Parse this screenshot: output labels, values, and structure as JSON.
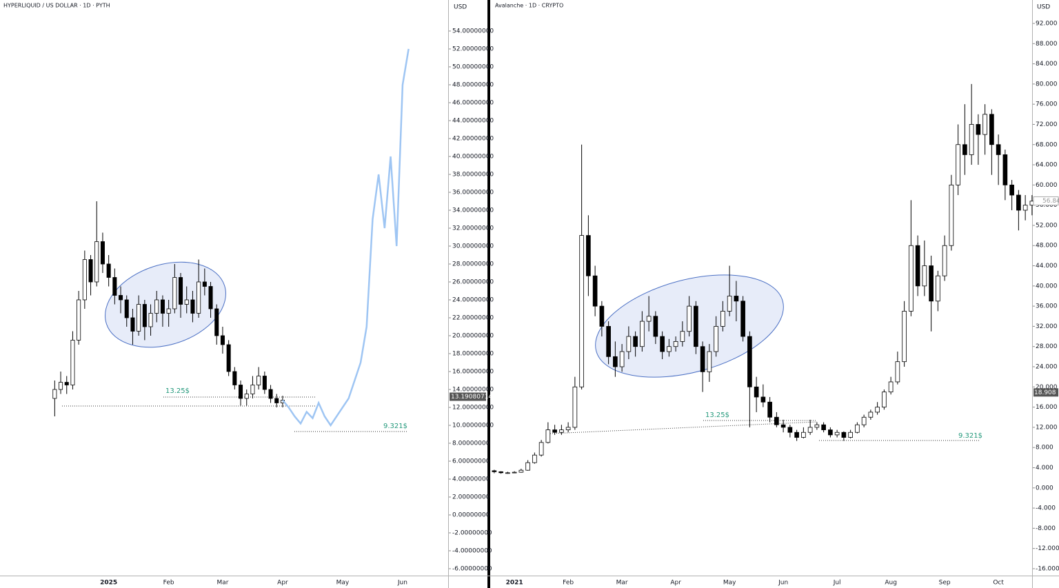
{
  "chart_data": [
    {
      "type": "candlestick",
      "title": "HYPERLIQUID / US DOLLAR · 1D · PYTH",
      "axis_unit": "USD",
      "categories": [
        null,
        null,
        null,
        null,
        null,
        null,
        null,
        null,
        null,
        "2025",
        null,
        null,
        null,
        null,
        null,
        null,
        null,
        null,
        null,
        "Feb",
        null,
        null,
        null,
        null,
        null,
        null,
        null,
        null,
        "Mar",
        null,
        null,
        null,
        null,
        null,
        null,
        null,
        null,
        null,
        "Apr",
        null,
        null,
        null,
        null,
        null,
        null,
        null,
        null,
        null,
        "May",
        null,
        null,
        null,
        null,
        null,
        null,
        null,
        null,
        null,
        "Jun",
        null
      ],
      "ohlc": [
        [
          13.0,
          15.0,
          11.0,
          14.0
        ],
        [
          14.0,
          16.0,
          13.5,
          14.8
        ],
        [
          14.8,
          15.5,
          13.5,
          14.5
        ],
        [
          14.5,
          20.5,
          14.0,
          19.5
        ],
        [
          19.5,
          25.0,
          19.0,
          24.0
        ],
        [
          24.0,
          29.5,
          23.0,
          28.5
        ],
        [
          28.5,
          29.0,
          24.5,
          26.0
        ],
        [
          26.0,
          35.0,
          25.5,
          30.5
        ],
        [
          30.5,
          31.5,
          27.0,
          28.0
        ],
        [
          28.0,
          29.0,
          25.5,
          26.5
        ],
        [
          26.5,
          27.5,
          23.5,
          24.5
        ],
        [
          24.5,
          25.5,
          22.5,
          24.0
        ],
        [
          24.0,
          24.5,
          21.0,
          22.0
        ],
        [
          22.0,
          23.0,
          19.0,
          20.5
        ],
        [
          20.5,
          24.5,
          20.0,
          23.5
        ],
        [
          23.5,
          24.0,
          19.5,
          21.0
        ],
        [
          21.0,
          23.5,
          20.0,
          22.5
        ],
        [
          22.5,
          25.0,
          21.5,
          24.0
        ],
        [
          24.0,
          24.5,
          21.0,
          22.5
        ],
        [
          22.5,
          24.0,
          21.0,
          23.0
        ],
        [
          23.0,
          28.0,
          22.5,
          26.5
        ],
        [
          26.5,
          27.0,
          22.0,
          23.5
        ],
        [
          23.5,
          25.5,
          22.5,
          24.0
        ],
        [
          24.0,
          25.0,
          21.5,
          22.5
        ],
        [
          22.5,
          28.5,
          22.0,
          26.0
        ],
        [
          26.0,
          27.5,
          24.5,
          25.5
        ],
        [
          25.5,
          26.0,
          22.0,
          23.0
        ],
        [
          23.0,
          23.5,
          19.0,
          20.0
        ],
        [
          20.0,
          21.0,
          18.0,
          19.0
        ],
        [
          19.0,
          19.5,
          15.5,
          16.0
        ],
        [
          16.0,
          16.5,
          14.0,
          14.5
        ],
        [
          14.5,
          15.0,
          12.2,
          13.0
        ],
        [
          13.0,
          14.0,
          12.2,
          13.5
        ],
        [
          13.5,
          15.5,
          13.0,
          14.5
        ],
        [
          14.5,
          16.5,
          14.0,
          15.5
        ],
        [
          15.5,
          16.0,
          13.5,
          14.0
        ],
        [
          14.0,
          14.5,
          12.5,
          13.0
        ],
        [
          13.0,
          13.5,
          12.0,
          12.5
        ],
        [
          12.5,
          13.3,
          12.0,
          12.8
        ],
        null,
        null,
        null,
        null,
        null,
        null,
        null,
        null,
        null,
        null,
        null,
        null,
        null,
        null,
        null,
        null,
        null,
        null,
        null,
        null,
        null,
        null
      ],
      "overlay": {
        "color": "#9ec5f3",
        "values": [
          null,
          null,
          null,
          null,
          null,
          null,
          null,
          null,
          null,
          null,
          null,
          null,
          null,
          null,
          null,
          null,
          null,
          null,
          null,
          null,
          null,
          null,
          null,
          null,
          null,
          null,
          null,
          null,
          null,
          null,
          null,
          null,
          null,
          null,
          null,
          null,
          null,
          null,
          12.8,
          12.0,
          11.0,
          10.2,
          11.5,
          10.8,
          12.5,
          11.0,
          10.0,
          11.0,
          12.0,
          13.0,
          15.0,
          17.0,
          21.0,
          33.0,
          38.0,
          32.0,
          40.0,
          30.0,
          48.0,
          52.0
        ]
      },
      "up_color": "#ffffff",
      "down_color": "#000000",
      "ylim": [
        -6.77,
        57.46
      ],
      "yticks": [
        {
          "value": -6,
          "label": "-6.00000000"
        },
        {
          "value": -4,
          "label": "-4.00000000"
        },
        {
          "value": -2,
          "label": "-2.00000000"
        },
        {
          "value": 0,
          "label": "0.00000000"
        },
        {
          "value": 2,
          "label": "2.00000000"
        },
        {
          "value": 4,
          "label": "4.00000000"
        },
        {
          "value": 6,
          "label": "6.00000000"
        },
        {
          "value": 8,
          "label": "8.00000000"
        },
        {
          "value": 10,
          "label": "10.00000000"
        },
        {
          "value": 12,
          "label": "12.00000000"
        },
        {
          "value": 14,
          "label": "14.00000000"
        },
        {
          "value": 16,
          "label": "16.00000000"
        },
        {
          "value": 18,
          "label": "18.00000000"
        },
        {
          "value": 20,
          "label": "20.00000000"
        },
        {
          "value": 22,
          "label": "22.00000000"
        },
        {
          "value": 24,
          "label": "24.00000000"
        },
        {
          "value": 26,
          "label": "26.00000000"
        },
        {
          "value": 28,
          "label": "28.00000000"
        },
        {
          "value": 30,
          "label": "30.00000000"
        },
        {
          "value": 32,
          "label": "32.00000000"
        },
        {
          "value": 34,
          "label": "34.00000000"
        },
        {
          "value": 36,
          "label": "36.00000000"
        },
        {
          "value": 38,
          "label": "38.00000000"
        },
        {
          "value": 40,
          "label": "40.00000000"
        },
        {
          "value": 42,
          "label": "42.00000000"
        },
        {
          "value": 44,
          "label": "44.00000000"
        },
        {
          "value": 46,
          "label": "46.00000000"
        },
        {
          "value": 48,
          "label": "48.00000000"
        },
        {
          "value": 50,
          "label": "50.00000000"
        },
        {
          "value": 52,
          "label": "52.00000000"
        },
        {
          "value": 54,
          "label": "54.00000000"
        }
      ],
      "last_price": 13.19080714,
      "annotations": [
        "13.25$",
        "9.321$"
      ],
      "annotation_color": "#22987a",
      "grid": false
    },
    {
      "type": "candlestick",
      "title": "Avalanche · 1D · CRYPTO",
      "axis_unit": "USD",
      "categories": [
        null,
        null,
        null,
        "2021",
        null,
        null,
        null,
        null,
        null,
        null,
        null,
        "Feb",
        null,
        null,
        null,
        null,
        null,
        null,
        null,
        "Mar",
        null,
        null,
        null,
        null,
        null,
        null,
        null,
        "Apr",
        null,
        null,
        null,
        null,
        null,
        null,
        null,
        "May",
        null,
        null,
        null,
        null,
        null,
        null,
        null,
        "Jun",
        null,
        null,
        null,
        null,
        null,
        null,
        null,
        "Jul",
        null,
        null,
        null,
        null,
        null,
        null,
        null,
        "Aug",
        null,
        null,
        null,
        null,
        null,
        null,
        null,
        "Sep",
        null,
        null,
        null,
        null,
        null,
        null,
        null,
        "Oct",
        null,
        null,
        null,
        null,
        null
      ],
      "ohlc": [
        [
          3.4,
          3.6,
          2.9,
          3.2
        ],
        [
          3.2,
          3.3,
          2.8,
          3.0
        ],
        [
          3.0,
          3.2,
          2.8,
          3.0
        ],
        [
          3.0,
          3.3,
          2.9,
          3.1
        ],
        [
          3.1,
          3.8,
          3.0,
          3.5
        ],
        [
          3.5,
          5.5,
          3.4,
          5.0
        ],
        [
          5.0,
          7.0,
          4.8,
          6.5
        ],
        [
          6.5,
          9.5,
          6.2,
          9.0
        ],
        [
          9.0,
          13.0,
          8.8,
          11.5
        ],
        [
          11.5,
          12.5,
          10.5,
          11.0
        ],
        [
          11.0,
          12.5,
          10.5,
          11.5
        ],
        [
          11.5,
          13.0,
          11.0,
          12.0
        ],
        [
          12.0,
          22.0,
          11.5,
          20.0
        ],
        [
          20.0,
          68.0,
          19.5,
          50.0
        ],
        [
          50.0,
          54.0,
          38.0,
          42.0
        ],
        [
          42.0,
          44.0,
          34.0,
          36.0
        ],
        [
          36.0,
          37.0,
          30.0,
          32.0
        ],
        [
          32.0,
          33.0,
          24.5,
          26.0
        ],
        [
          26.0,
          29.0,
          22.0,
          24.0
        ],
        [
          24.0,
          28.5,
          23.0,
          27.0
        ],
        [
          27.0,
          32.0,
          25.5,
          30.0
        ],
        [
          30.0,
          31.0,
          26.0,
          28.0
        ],
        [
          28.0,
          35.0,
          27.0,
          33.0
        ],
        [
          33.0,
          38.0,
          31.0,
          34.0
        ],
        [
          34.0,
          35.0,
          28.5,
          30.0
        ],
        [
          30.0,
          31.0,
          25.5,
          27.0
        ],
        [
          27.0,
          29.5,
          26.0,
          28.0
        ],
        [
          28.0,
          30.0,
          27.0,
          29.0
        ],
        [
          29.0,
          33.0,
          28.0,
          31.0
        ],
        [
          31.0,
          38.0,
          30.0,
          36.0
        ],
        [
          36.0,
          37.0,
          26.5,
          28.0
        ],
        [
          28.0,
          29.0,
          19.0,
          23.0
        ],
        [
          23.0,
          28.5,
          21.0,
          27.0
        ],
        [
          27.0,
          34.0,
          26.0,
          32.0
        ],
        [
          32.0,
          37.0,
          31.0,
          35.0
        ],
        [
          35.0,
          44.0,
          34.0,
          38.0
        ],
        [
          38.0,
          41.0,
          33.0,
          37.0
        ],
        [
          37.0,
          38.0,
          29.0,
          30.0
        ],
        [
          30.0,
          31.0,
          12.0,
          20.0
        ],
        [
          20.0,
          22.0,
          15.0,
          18.0
        ],
        [
          18.0,
          20.5,
          16.0,
          17.0
        ],
        [
          17.0,
          18.0,
          13.0,
          14.0
        ],
        [
          14.0,
          15.0,
          12.0,
          12.5
        ],
        [
          12.5,
          13.5,
          11.0,
          12.0
        ],
        [
          12.0,
          12.5,
          10.0,
          11.0
        ],
        [
          11.0,
          11.5,
          9.3,
          10.0
        ],
        [
          10.0,
          12.0,
          9.8,
          11.0
        ],
        [
          11.0,
          13.5,
          10.5,
          12.0
        ],
        [
          12.0,
          13.0,
          11.5,
          12.5
        ],
        [
          12.5,
          13.0,
          11.0,
          11.5
        ],
        [
          11.5,
          12.0,
          10.0,
          10.5
        ],
        [
          10.5,
          11.5,
          10.0,
          11.0
        ],
        [
          11.0,
          11.2,
          9.3,
          10.0
        ],
        [
          10.0,
          11.5,
          9.8,
          11.0
        ],
        [
          11.0,
          13.0,
          10.8,
          12.5
        ],
        [
          12.5,
          14.5,
          12.0,
          14.0
        ],
        [
          14.0,
          15.5,
          13.5,
          15.0
        ],
        [
          15.0,
          17.0,
          14.5,
          16.0
        ],
        [
          16.0,
          19.5,
          15.5,
          19.0
        ],
        [
          19.0,
          22.0,
          18.5,
          21.0
        ],
        [
          21.0,
          27.0,
          20.5,
          25.0
        ],
        [
          25.0,
          37.0,
          24.0,
          35.0
        ],
        [
          35.0,
          57.0,
          34.0,
          48.0
        ],
        [
          48.0,
          50.0,
          38.0,
          40.0
        ],
        [
          40.0,
          49.0,
          38.0,
          44.0
        ],
        [
          44.0,
          46.0,
          31.0,
          37.0
        ],
        [
          37.0,
          43.0,
          35.0,
          42.0
        ],
        [
          42.0,
          50.0,
          41.0,
          48.0
        ],
        [
          48.0,
          62.0,
          47.0,
          60.0
        ],
        [
          60.0,
          72.0,
          58.0,
          68.0
        ],
        [
          68.0,
          76.0,
          62.0,
          66.0
        ],
        [
          66.0,
          80.0,
          64.0,
          72.0
        ],
        [
          72.0,
          74.0,
          64.0,
          70.0
        ],
        [
          70.0,
          76.0,
          66.0,
          74.0
        ],
        [
          74.0,
          75.0,
          62.0,
          68.0
        ],
        [
          68.0,
          70.0,
          60.0,
          66.0
        ],
        [
          66.0,
          67.0,
          57.0,
          60.0
        ],
        [
          60.0,
          61.0,
          55.0,
          58.0
        ],
        [
          58.0,
          59.0,
          51.0,
          55.0
        ],
        [
          55.0,
          58.0,
          53.0,
          56.0
        ],
        [
          56.0,
          58.0,
          54.0,
          56.8
        ]
      ],
      "up_color": "#ffffff",
      "down_color": "#000000",
      "ylim": [
        -17.37,
        96.64
      ],
      "yticks": [
        {
          "value": -16,
          "label": "-16.000"
        },
        {
          "value": -12,
          "label": "-12.000"
        },
        {
          "value": -8,
          "label": "-8.000"
        },
        {
          "value": -4,
          "label": "-4.000"
        },
        {
          "value": 0,
          "label": "0.000"
        },
        {
          "value": 4,
          "label": "4.000"
        },
        {
          "value": 8,
          "label": "8.000"
        },
        {
          "value": 12,
          "label": "12.000"
        },
        {
          "value": 16,
          "label": "16.000"
        },
        {
          "value": 20,
          "label": "20.000"
        },
        {
          "value": 24,
          "label": "24.000"
        },
        {
          "value": 28,
          "label": "28.000"
        },
        {
          "value": 32,
          "label": "32.000"
        },
        {
          "value": 36,
          "label": "36.000"
        },
        {
          "value": 40,
          "label": "40.000"
        },
        {
          "value": 44,
          "label": "44.000"
        },
        {
          "value": 48,
          "label": "48.000"
        },
        {
          "value": 52,
          "label": "52.000"
        },
        {
          "value": 56,
          "label": "56.000"
        },
        {
          "value": 60,
          "label": "60.000"
        },
        {
          "value": 64,
          "label": "64.000"
        },
        {
          "value": 68,
          "label": "68.000"
        },
        {
          "value": 72,
          "label": "72.000"
        },
        {
          "value": 76,
          "label": "76.000"
        },
        {
          "value": 80,
          "label": "80.000"
        },
        {
          "value": 84,
          "label": "84.000"
        },
        {
          "value": 88,
          "label": "88.000"
        },
        {
          "value": 92,
          "label": "92.000"
        }
      ],
      "last_price": 18.908,
      "marker_price": 56.845,
      "annotations": [
        "13.25$",
        "9.321$"
      ],
      "annotation_color": "#22987a",
      "grid": false
    }
  ]
}
